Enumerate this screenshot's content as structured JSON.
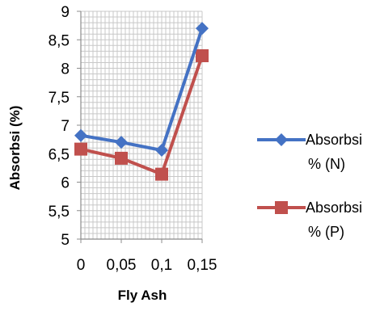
{
  "chart_data": {
    "type": "line",
    "xlabel": "Fly Ash",
    "ylabel": "Absorbsi (%)",
    "x": [
      "0",
      "0,05",
      "0,1",
      "0,15"
    ],
    "ylim": [
      5,
      9
    ],
    "y_ticks": [
      "5",
      "5,5",
      "6",
      "6,5",
      "7",
      "7,5",
      "8",
      "8,5",
      "9"
    ],
    "grid": "on",
    "legend_position": "right",
    "series": [
      {
        "name_lines": [
          "Absorbsi",
          "% (N)"
        ],
        "color": "#4472C4",
        "marker": "diamond",
        "values": [
          6.82,
          6.7,
          6.56,
          8.7
        ]
      },
      {
        "name_lines": [
          "Absorbsi",
          "% (P)"
        ],
        "color": "#C0504D",
        "marker": "square",
        "values": [
          6.58,
          6.42,
          6.14,
          8.22
        ]
      }
    ]
  }
}
